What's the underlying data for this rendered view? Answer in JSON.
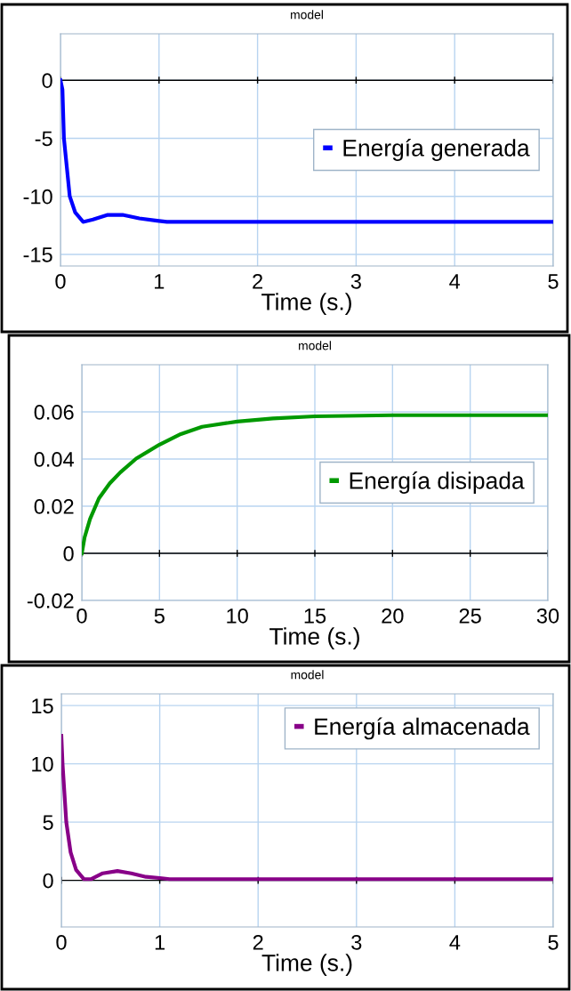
{
  "chart_data": [
    {
      "type": "line",
      "title": "model",
      "xlabel": "Time (s.)",
      "xlim": [
        0,
        5
      ],
      "xticks": [
        0,
        1,
        2,
        3,
        4,
        5
      ],
      "ylim": [
        -16,
        4
      ],
      "yticks": [
        -15,
        -10,
        -5,
        0
      ],
      "grid": true,
      "legend": "right",
      "marker": "none",
      "line_style": "solid",
      "ref_lines": [
        {
          "axis": "y",
          "value": 0,
          "color": "#000000"
        }
      ],
      "series": [
        {
          "name": "Energía generada",
          "color": "#0000ff",
          "x": [
            0,
            0.02,
            0.035,
            0.094,
            0.15,
            0.23,
            0.33,
            0.48,
            0.63,
            0.8,
            0.98,
            1.08,
            2,
            3,
            4,
            5
          ],
          "values": [
            0,
            -0.8,
            -5,
            -10,
            -11.4,
            -12.2,
            -12.0,
            -11.6,
            -11.6,
            -11.9,
            -12.1,
            -12.2,
            -12.2,
            -12.2,
            -12.2,
            -12.2
          ]
        }
      ]
    },
    {
      "type": "line",
      "title": "model",
      "xlabel": "Time (s.)",
      "xlim": [
        0,
        30
      ],
      "xticks": [
        0,
        5,
        10,
        15,
        20,
        25,
        30
      ],
      "ylim": [
        -0.02,
        0.08
      ],
      "yticks": [
        -0.02,
        0,
        0.02,
        0.04,
        0.06
      ],
      "grid": true,
      "legend": "right",
      "marker": "none",
      "line_style": "solid",
      "ref_lines": [
        {
          "axis": "y",
          "value": 0,
          "color": "#000000"
        }
      ],
      "series": [
        {
          "name": "Energía disipada",
          "color": "#009900",
          "x": [
            0,
            0.18,
            0.53,
            1.1,
            1.79,
            2.47,
            3.5,
            5,
            6.37,
            7.74,
            10,
            12.3,
            15,
            20,
            25,
            30
          ],
          "values": [
            0,
            0.0068,
            0.0146,
            0.0233,
            0.0296,
            0.0343,
            0.0402,
            0.0461,
            0.0506,
            0.0537,
            0.0559,
            0.0572,
            0.0581,
            0.0586,
            0.0586,
            0.0586
          ]
        }
      ]
    },
    {
      "type": "line",
      "title": "model",
      "xlabel": "Time (s.)",
      "xlim": [
        0,
        5
      ],
      "xticks": [
        0,
        1,
        2,
        3,
        4,
        5
      ],
      "ylim": [
        -4,
        16
      ],
      "yticks": [
        0,
        5,
        10,
        15
      ],
      "grid": true,
      "legend": "top right",
      "marker": "none",
      "line_style": "solid",
      "ref_lines": [
        {
          "axis": "y",
          "value": 0,
          "color": "#000000"
        }
      ],
      "series": [
        {
          "name": "Energía almacenada",
          "color": "#880088",
          "x": [
            0,
            0.012,
            0.05,
            0.094,
            0.15,
            0.23,
            0.3,
            0.42,
            0.57,
            0.71,
            0.86,
            1.0,
            1.1,
            2,
            3,
            4,
            5
          ],
          "values": [
            12.4,
            10,
            5,
            2.4,
            0.9,
            0.1,
            0.1,
            0.6,
            0.8,
            0.6,
            0.3,
            0.2,
            0.1,
            0.1,
            0.1,
            0.1,
            0.1
          ]
        }
      ]
    }
  ]
}
